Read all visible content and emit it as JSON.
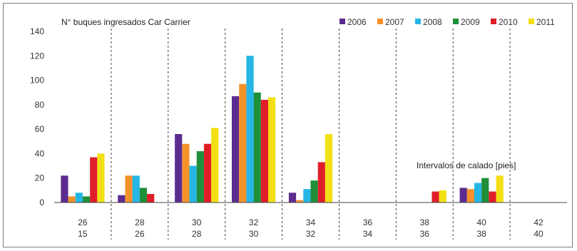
{
  "chart_data": {
    "type": "bar",
    "title": "N° buques ingresados Car Carrier",
    "annotation": "Intervalos de calado [pies]",
    "ylim": [
      0,
      140
    ],
    "yticks": [
      0,
      20,
      40,
      60,
      80,
      100,
      120,
      140
    ],
    "categories_top": [
      "26",
      "28",
      "30",
      "32",
      "34",
      "36",
      "38",
      "40",
      "42"
    ],
    "categories_bottom": [
      "15",
      "26",
      "28",
      "30",
      "32",
      "34",
      "36",
      "38",
      "40"
    ],
    "legend_position": "top-right",
    "grid": "vertical dashed separators between categories",
    "series": [
      {
        "name": "2006",
        "color": "#5b2c8f",
        "values": [
          22,
          6,
          56,
          87,
          8,
          0,
          0,
          12,
          0
        ]
      },
      {
        "name": "2007",
        "color": "#f5922a",
        "values": [
          5,
          22,
          48,
          97,
          2,
          0,
          0,
          11,
          0
        ]
      },
      {
        "name": "2008",
        "color": "#26b6e6",
        "values": [
          8,
          22,
          30,
          120,
          11,
          0,
          0,
          16,
          0
        ]
      },
      {
        "name": "2009",
        "color": "#1f8f3a",
        "values": [
          5,
          12,
          42,
          90,
          18,
          0,
          0,
          20,
          0
        ]
      },
      {
        "name": "2010",
        "color": "#e01e2a",
        "values": [
          37,
          7,
          48,
          84,
          33,
          0,
          9,
          9,
          0
        ]
      },
      {
        "name": "2011",
        "color": "#f3e014",
        "values": [
          40,
          0,
          61,
          86,
          56,
          0,
          10,
          22,
          0
        ]
      }
    ]
  }
}
